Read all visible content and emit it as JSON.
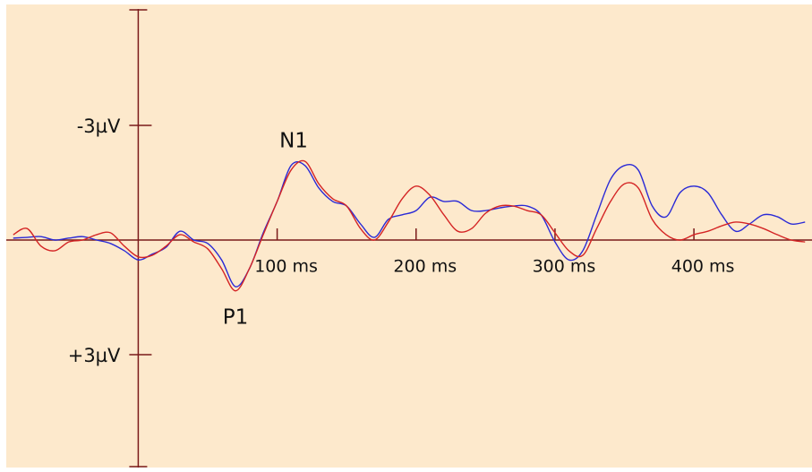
{
  "chart_data": {
    "type": "line",
    "annotations": [
      {
        "text": "N1"
      },
      {
        "text": "P1"
      }
    ],
    "x": [
      -90,
      -80,
      -70,
      -60,
      -50,
      -40,
      -30,
      -20,
      -10,
      0,
      10,
      20,
      30,
      40,
      50,
      60,
      70,
      80,
      90,
      100,
      110,
      120,
      130,
      140,
      150,
      160,
      170,
      180,
      190,
      200,
      210,
      220,
      230,
      240,
      250,
      260,
      270,
      280,
      290,
      300,
      310,
      320,
      330,
      340,
      350,
      360,
      370,
      380,
      390,
      400,
      410,
      420,
      430,
      440,
      450,
      460,
      470,
      480
    ],
    "series": [
      {
        "color": "#2a2ad6",
        "values": [
          -0.05,
          -0.07,
          -0.09,
          0,
          -0.05,
          -0.09,
          0,
          0.09,
          0.28,
          0.52,
          0.37,
          0.19,
          -0.23,
          0,
          0.09,
          0.52,
          1.22,
          0.75,
          -0.19,
          -1.01,
          -1.95,
          -1.95,
          -1.36,
          -1.01,
          -0.89,
          -0.42,
          -0.07,
          -0.54,
          -0.66,
          -0.77,
          -1.12,
          -1.01,
          -1.01,
          -0.77,
          -0.77,
          -0.84,
          -0.89,
          -0.89,
          -0.66,
          0.05,
          0.52,
          0.28,
          -0.66,
          -1.59,
          -1.95,
          -1.83,
          -0.89,
          -0.61,
          -1.24,
          -1.41,
          -1.24,
          -0.66,
          -0.23,
          -0.42,
          -0.66,
          -0.61,
          -0.42,
          -0.47
        ]
      },
      {
        "color": "#d42424",
        "values": [
          -0.14,
          -0.3,
          0.16,
          0.28,
          0.05,
          0,
          -0.14,
          -0.19,
          0.16,
          0.44,
          0.4,
          0.16,
          -0.14,
          0.05,
          0.23,
          0.75,
          1.33,
          0.75,
          -0.14,
          -1.01,
          -1.83,
          -2.06,
          -1.47,
          -1.08,
          -0.89,
          -0.3,
          0,
          -0.47,
          -1.08,
          -1.41,
          -1.17,
          -0.66,
          -0.23,
          -0.3,
          -0.7,
          -0.89,
          -0.89,
          -0.77,
          -0.66,
          -0.19,
          0.28,
          0.4,
          -0.3,
          -1.01,
          -1.47,
          -1.36,
          -0.54,
          -0.14,
          0,
          -0.14,
          -0.23,
          -0.37,
          -0.47,
          -0.42,
          -0.3,
          -0.14,
          0,
          0.05
        ]
      }
    ],
    "xlim": [
      -95,
      485
    ],
    "ylim": [
      6,
      -6
    ],
    "xticks": [
      {
        "value": 100,
        "label": "100 ms"
      },
      {
        "value": 200,
        "label": "200 ms"
      },
      {
        "value": 300,
        "label": "300 ms"
      },
      {
        "value": 400,
        "label": "400 ms"
      }
    ],
    "yticks": [
      {
        "value": -3,
        "label": "-3µV"
      },
      {
        "value": 3,
        "label": "+3µV"
      }
    ],
    "axis_color": "#7a1a1a",
    "background": "#fde9cc"
  }
}
